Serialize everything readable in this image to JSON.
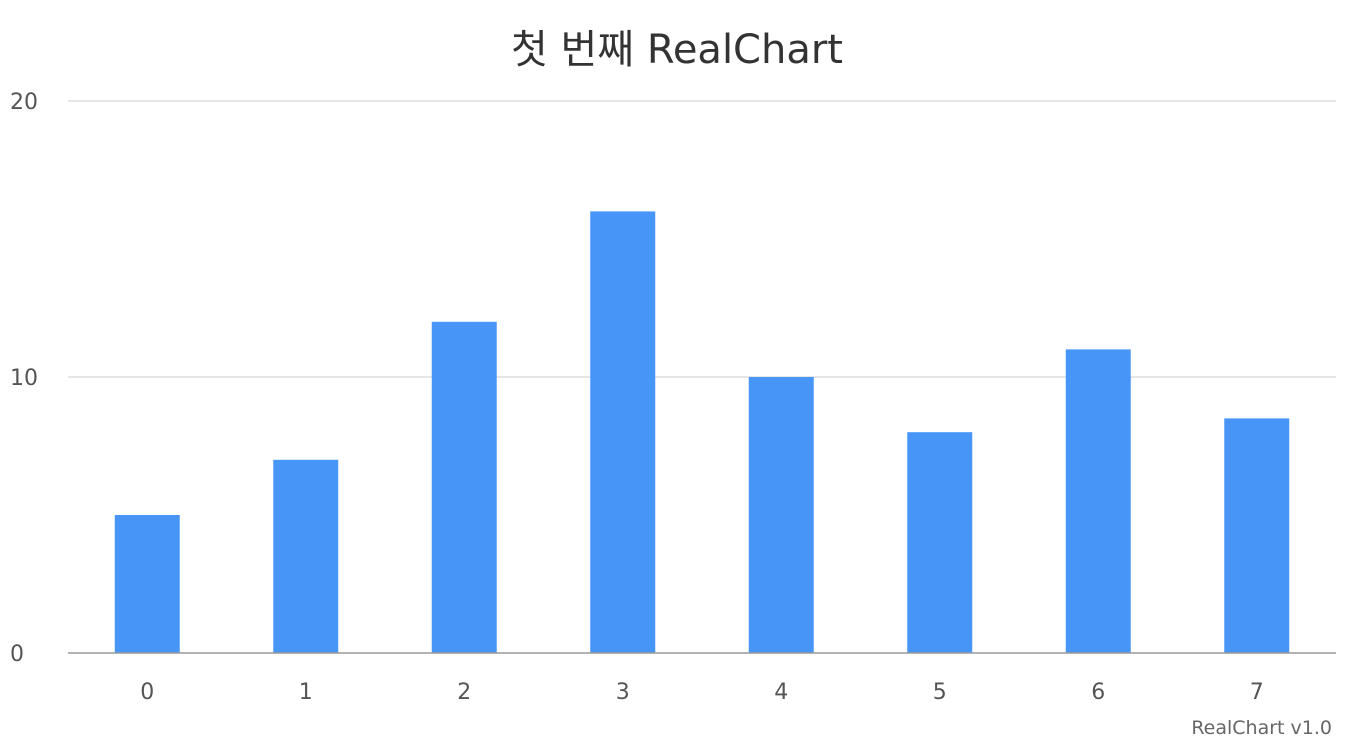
{
  "chart_data": {
    "type": "bar",
    "title": "첫 번째 RealChart",
    "categories": [
      "0",
      "1",
      "2",
      "3",
      "4",
      "5",
      "6",
      "7"
    ],
    "series": [
      {
        "values": [
          5,
          7,
          12,
          16,
          10,
          8,
          11,
          8.5
        ]
      }
    ],
    "ylim": [
      0,
      20
    ],
    "yticks": [
      0,
      10,
      20
    ],
    "grid": true,
    "legend": "none",
    "bar_color": "#4795f7",
    "grid_color": "#dddddd",
    "axis_color": "#999999"
  },
  "credits": "RealChart v1.0"
}
